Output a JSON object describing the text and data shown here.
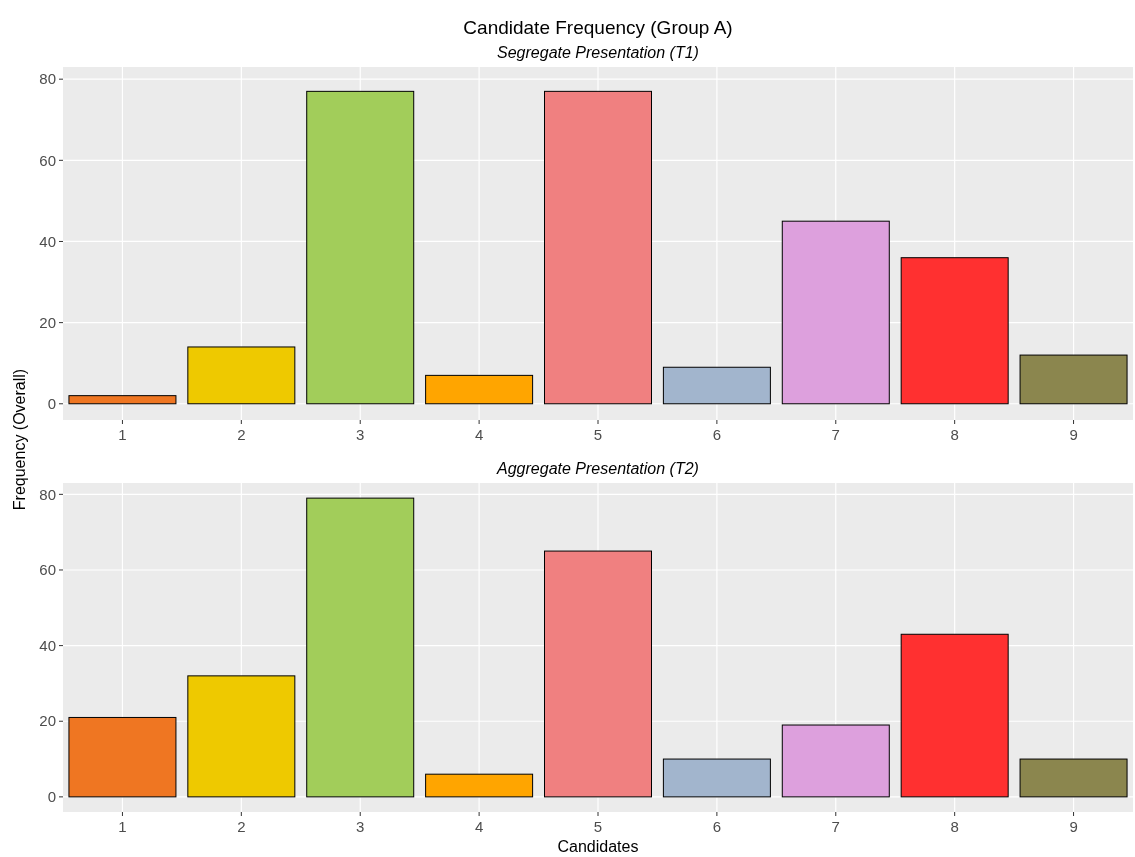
{
  "chart_data": [
    {
      "type": "bar",
      "title": "Candidate Frequency (Group A)",
      "subtitle": "Segregate Presentation (T1)",
      "ylabel": "Frequency (Overall)",
      "categories": [
        "1",
        "2",
        "3",
        "4",
        "5",
        "6",
        "7",
        "8",
        "9"
      ],
      "values": [
        2,
        14,
        77,
        7,
        77,
        9,
        45,
        36,
        12
      ],
      "colors": [
        "#ef7622",
        "#eec900",
        "#a2cd5a",
        "#ffa500",
        "#f08080",
        "#a2b5cd",
        "#dda0dd",
        "#ff3030",
        "#8b864e"
      ],
      "ylim": [
        -4,
        83
      ],
      "yticks": [
        0,
        20,
        40,
        60,
        80
      ],
      "grid": true
    },
    {
      "type": "bar",
      "subtitle": "Aggregate Presentation (T2)",
      "xlabel": "Candidates",
      "categories": [
        "1",
        "2",
        "3",
        "4",
        "5",
        "6",
        "7",
        "8",
        "9"
      ],
      "values": [
        21,
        32,
        79,
        6,
        65,
        10,
        19,
        43,
        10
      ],
      "colors": [
        "#ef7622",
        "#eec900",
        "#a2cd5a",
        "#ffa500",
        "#f08080",
        "#a2b5cd",
        "#dda0dd",
        "#ff3030",
        "#8b864e"
      ],
      "ylim": [
        -4,
        83
      ],
      "yticks": [
        0,
        20,
        40,
        60,
        80
      ],
      "grid": true
    }
  ]
}
